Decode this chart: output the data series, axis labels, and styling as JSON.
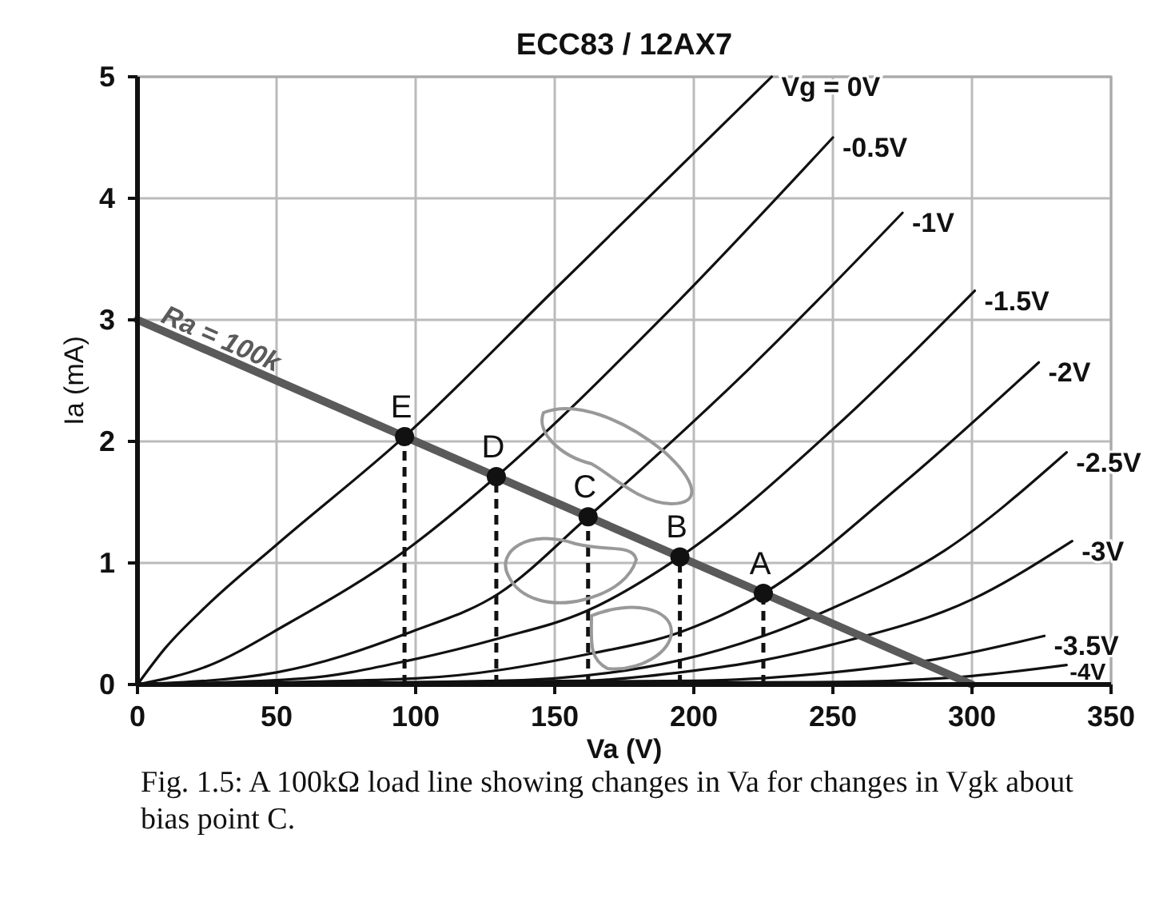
{
  "chart_data": {
    "type": "line",
    "title": "ECC83 / 12AX7",
    "xlabel": "Va (V)",
    "ylabel": "Ia (mA)",
    "xlim": [
      0,
      350
    ],
    "xticks": [
      0,
      50,
      100,
      150,
      200,
      250,
      300,
      350
    ],
    "ylim": [
      0,
      5
    ],
    "yticks": [
      0,
      1,
      2,
      3,
      4,
      5
    ],
    "grid": true,
    "legend": false,
    "marker": "none",
    "line_style": "solid",
    "series": [
      {
        "name": "Vg = 0V",
        "color": "#111111",
        "x": [
          0,
          10,
          25,
          50,
          96,
          150,
          228
        ],
        "values": [
          0,
          0.3,
          0.65,
          1.15,
          2.04,
          3.25,
          5
        ]
      },
      {
        "name": "-0.5V",
        "color": "#111111",
        "x": [
          0,
          25,
          54,
          98,
          129,
          190,
          250
        ],
        "values": [
          0,
          0.15,
          0.5,
          1.13,
          1.71,
          3.05,
          4.5
        ]
      },
      {
        "name": "-1V",
        "color": "#111111",
        "x": [
          0,
          50,
          98,
          130,
          162,
          220,
          275
        ],
        "values": [
          0,
          0.1,
          0.43,
          0.75,
          1.38,
          2.6,
          3.88
        ]
      },
      {
        "name": "-1.5V",
        "color": "#111111",
        "x": [
          0,
          60,
          98,
          130,
          161,
          195,
          250,
          301
        ],
        "values": [
          0,
          0.05,
          0.2,
          0.38,
          0.6,
          1.05,
          2.1,
          3.24
        ]
      },
      {
        "name": "-2V",
        "color": "#111111",
        "x": [
          0,
          100,
          162,
          195,
          225,
          275,
          324
        ],
        "values": [
          0,
          0.05,
          0.25,
          0.43,
          0.75,
          1.65,
          2.65
        ]
      },
      {
        "name": "-2.5V",
        "color": "#111111",
        "x": [
          0,
          130,
          195,
          225,
          250,
          290,
          334
        ],
        "values": [
          0,
          0.03,
          0.2,
          0.4,
          0.63,
          1.1,
          1.91
        ]
      },
      {
        "name": "-3V",
        "color": "#111111",
        "x": [
          0,
          160,
          195,
          225,
          250,
          300,
          336
        ],
        "values": [
          0,
          0.03,
          0.1,
          0.2,
          0.33,
          0.7,
          1.18
        ]
      },
      {
        "name": "-3.5V",
        "color": "#111111",
        "x": [
          0,
          200,
          250,
          290,
          326
        ],
        "values": [
          0,
          0.03,
          0.1,
          0.22,
          0.4
        ]
      },
      {
        "name": "-4V",
        "color": "#111111",
        "x": [
          0,
          250,
          300,
          334
        ],
        "values": [
          0,
          0.02,
          0.07,
          0.16
        ]
      },
      {
        "name": "Ra = 100k",
        "color": "#5a5a5a",
        "x": [
          0,
          300
        ],
        "values": [
          3,
          0
        ]
      },
      {
        "type": "scatter",
        "marker": "circle",
        "color": "#111111",
        "x": [
          96,
          129,
          162,
          195,
          225
        ],
        "values": [
          2.04,
          1.71,
          1.38,
          1.05,
          0.75
        ],
        "errors": [
          [
            2.04,
            0
          ],
          [
            1.71,
            0
          ],
          [
            1.38,
            0
          ],
          [
            1.05,
            0
          ],
          [
            0.75,
            0
          ]
        ]
      }
    ],
    "annotations": [
      {
        "text": "E",
        "x": 96,
        "y": 2.04
      },
      {
        "text": "D",
        "x": 129,
        "y": 1.71
      },
      {
        "text": "C",
        "x": 162,
        "y": 1.38
      },
      {
        "text": "B",
        "x": 195,
        "y": 1.05
      },
      {
        "text": "A",
        "x": 225,
        "y": 0.75
      },
      "Fig. 1.5: A 100kΩ load line showing changes in Va for changes in Vgk about bias point C."
    ]
  }
}
